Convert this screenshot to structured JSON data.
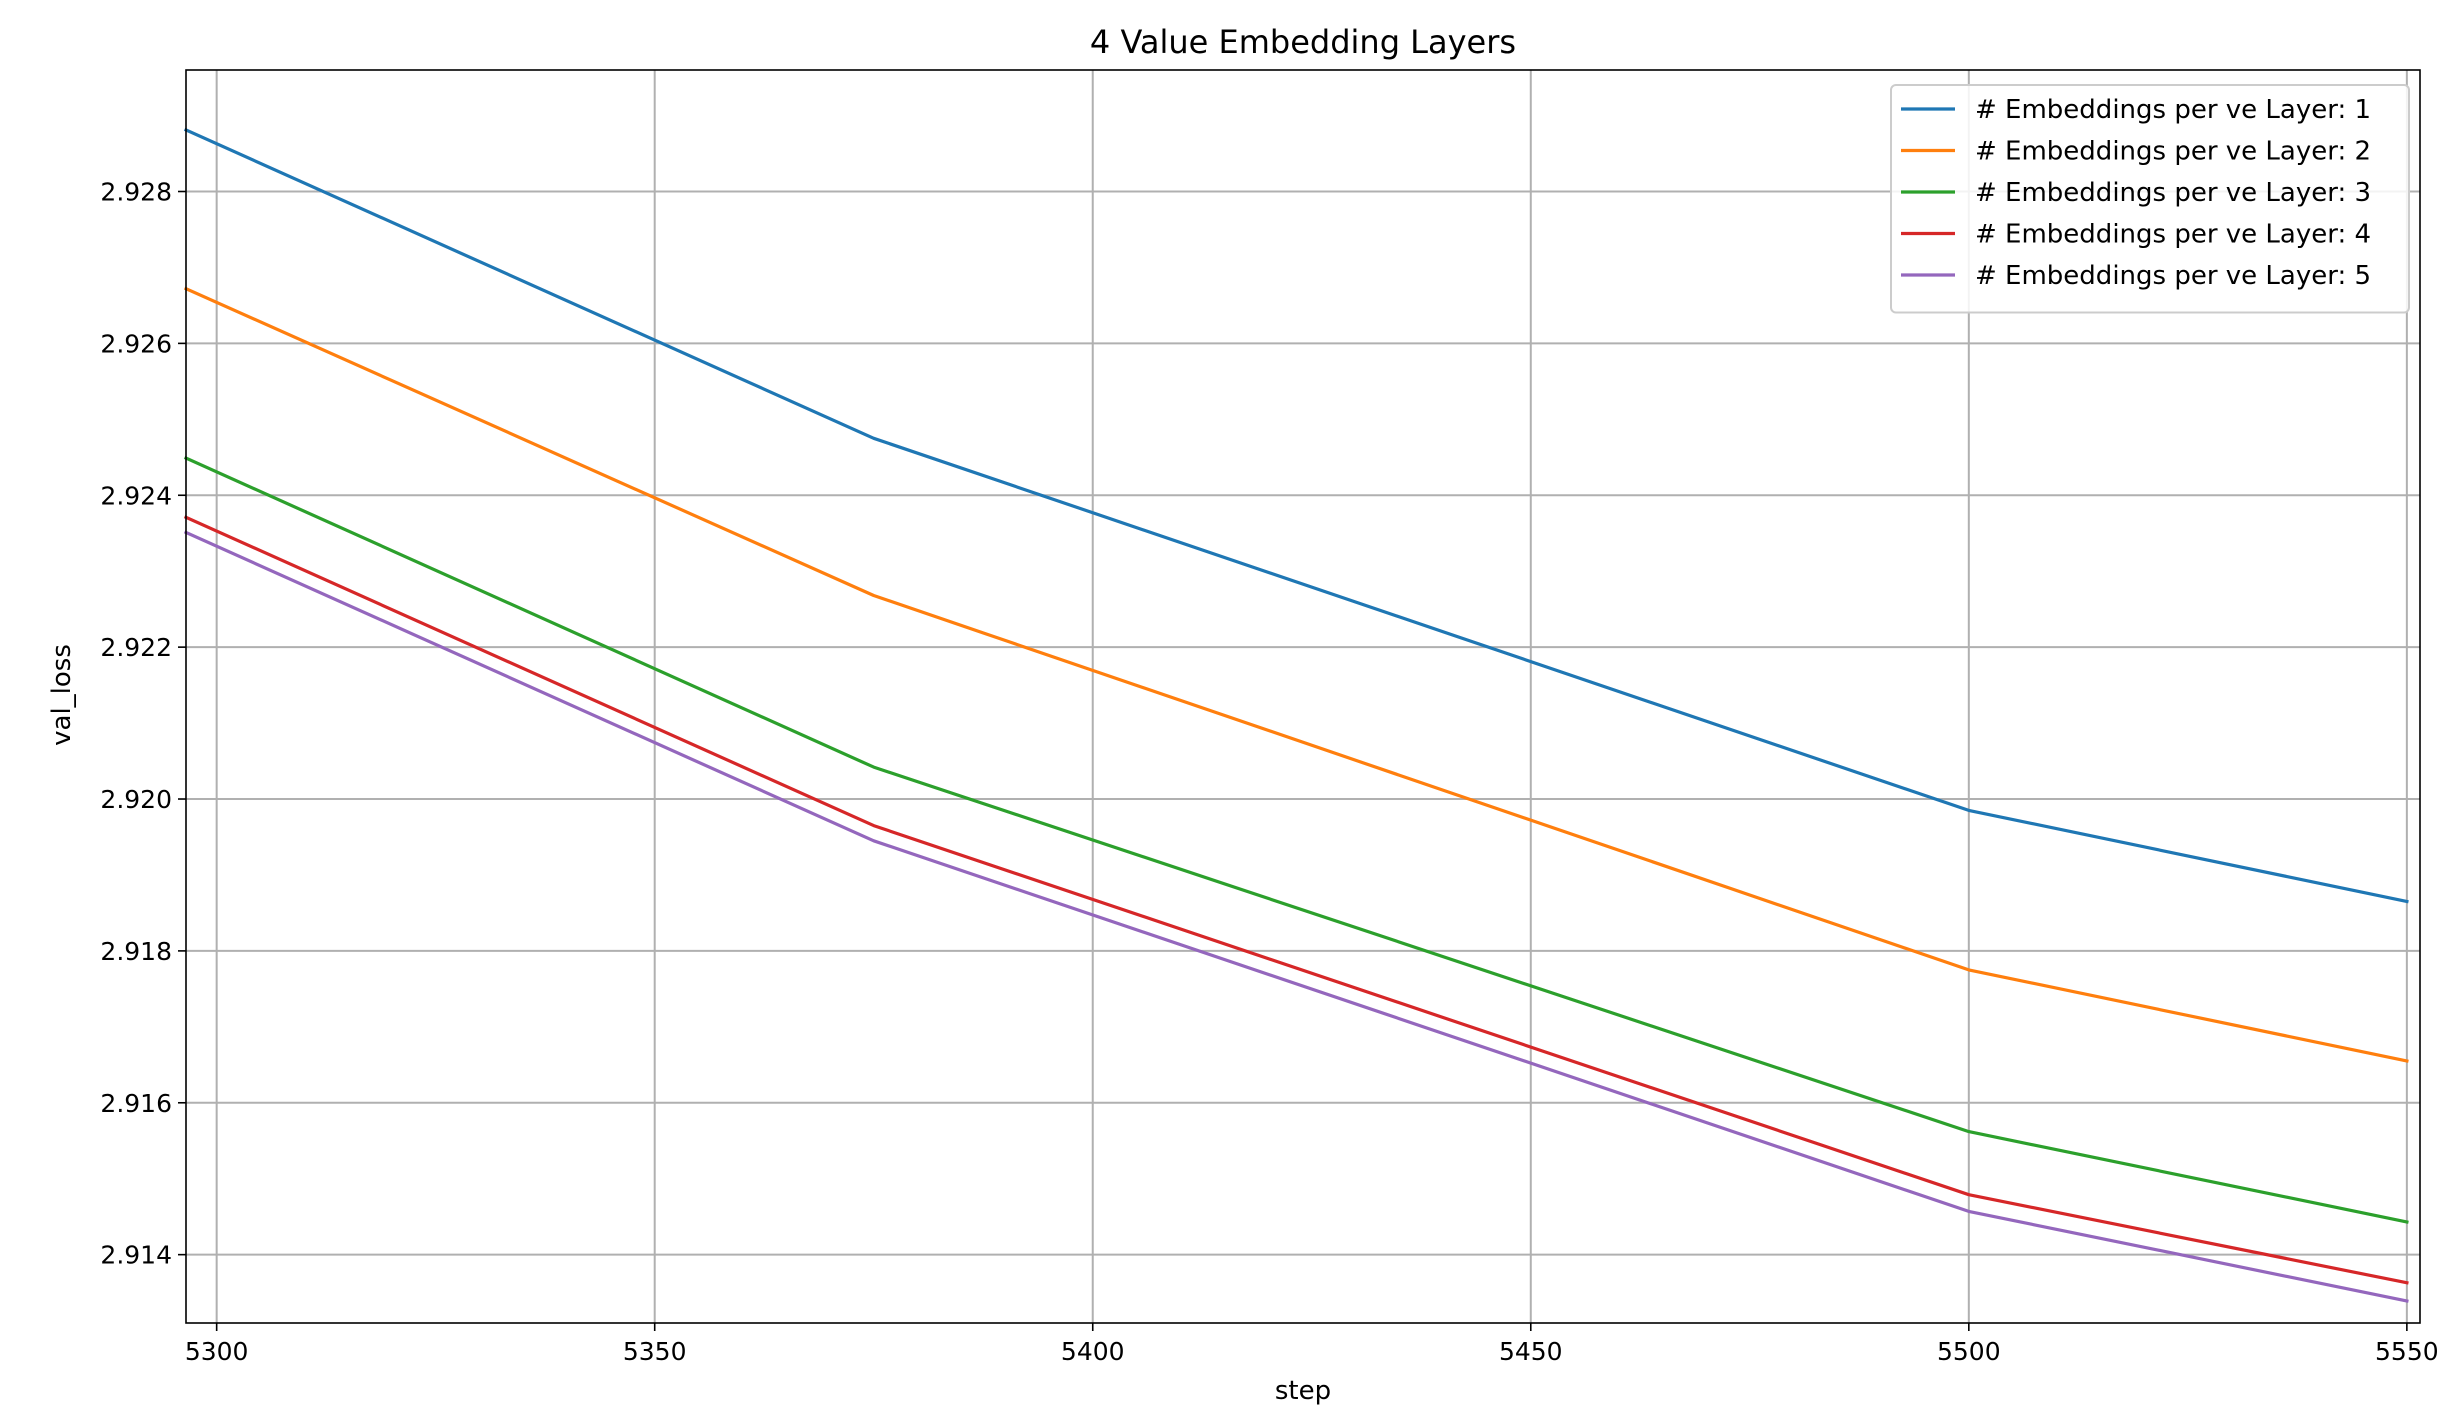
{
  "chart_data": {
    "type": "line",
    "title": "4 Value Embedding Layers",
    "xlabel": "step",
    "ylabel": "val_loss",
    "xlim": [
      5296.5,
      5551.5
    ],
    "ylim": [
      2.9131,
      2.9296
    ],
    "xticks": [
      5300,
      5350,
      5400,
      5450,
      5500,
      5550
    ],
    "yticks": [
      2.914,
      2.916,
      2.918,
      2.92,
      2.922,
      2.924,
      2.926,
      2.928
    ],
    "ytick_labels": [
      "2.914",
      "2.916",
      "2.918",
      "2.920",
      "2.922",
      "2.924",
      "2.926",
      "2.928"
    ],
    "grid": true,
    "legend_position": "top-right",
    "x": [
      5296.5,
      5375,
      5500,
      5550
    ],
    "series": [
      {
        "name": "# Embeddings per ve Layer: 1",
        "color": "#1f77b4",
        "values": [
          2.92881,
          2.92475,
          2.91985,
          2.91865
        ]
      },
      {
        "name": "# Embeddings per ve Layer: 2",
        "color": "#ff7f0e",
        "values": [
          2.92672,
          2.92268,
          2.91775,
          2.91655
        ]
      },
      {
        "name": "# Embeddings per ve Layer: 3",
        "color": "#2ca02c",
        "values": [
          2.92449,
          2.92042,
          2.91562,
          2.91443
        ]
      },
      {
        "name": "# Embeddings per ve Layer: 4",
        "color": "#d62728",
        "values": [
          2.92371,
          2.91965,
          2.91479,
          2.91363
        ]
      },
      {
        "name": "# Embeddings per ve Layer: 5",
        "color": "#9467bd",
        "values": [
          2.92351,
          2.91945,
          2.91457,
          2.91339
        ]
      }
    ]
  }
}
